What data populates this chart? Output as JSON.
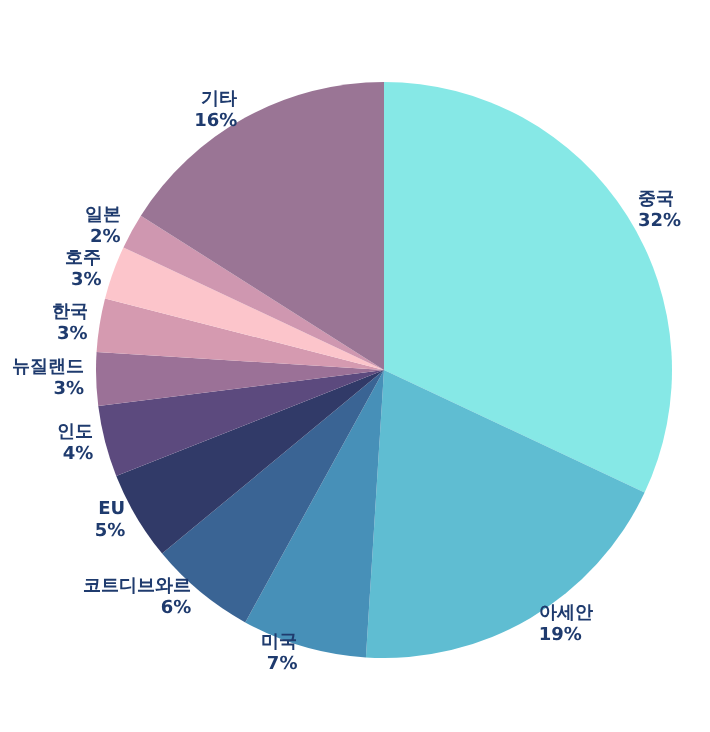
{
  "chart_data": {
    "type": "pie",
    "categories": [
      "중국",
      "아세안",
      "미국",
      "코트디브와르",
      "EU",
      "인도",
      "뉴질랜드",
      "한국",
      "호주",
      "일본",
      "기타"
    ],
    "values": [
      32,
      19,
      7,
      6,
      5,
      4,
      3,
      3,
      3,
      2,
      16
    ],
    "value_labels": [
      "32%",
      "19%",
      "7%",
      "6%",
      "5%",
      "4%",
      "3%",
      "3%",
      "3%",
      "2%",
      "16%"
    ],
    "colors": [
      "#86e8e6",
      "#5fbdd2",
      "#4790b8",
      "#3a6494",
      "#313a68",
      "#5c4a7e",
      "#9b7197",
      "#d59ab0",
      "#fcc5cb",
      "#cf97b0",
      "#9a7595"
    ]
  }
}
